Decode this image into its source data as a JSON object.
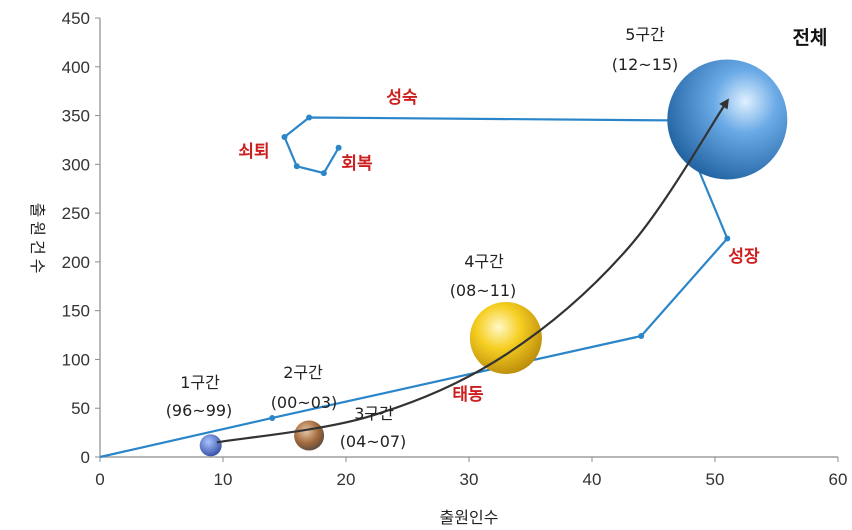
{
  "chart_data": {
    "type": "bubble-line",
    "title": "",
    "xlabel": "출원인수",
    "ylabel": "출원건수",
    "xlim": [
      0,
      60
    ],
    "ylim": [
      0,
      450
    ],
    "xticks": [
      "0",
      "10",
      "20",
      "30",
      "40",
      "50",
      "60"
    ],
    "yticks": [
      "0",
      "50",
      "100",
      "150",
      "200",
      "250",
      "300",
      "350",
      "400",
      "450"
    ],
    "grid": false,
    "lifecycle_path": {
      "color": "#2b86c9",
      "points": [
        {
          "x": 0,
          "y": 0
        },
        {
          "x": 14,
          "y": 40
        },
        {
          "x": 44,
          "y": 124
        },
        {
          "x": 51,
          "y": 224
        },
        {
          "x": 47,
          "y": 345
        },
        {
          "x": 17,
          "y": 348
        },
        {
          "x": 15,
          "y": 328
        },
        {
          "x": 16,
          "y": 298
        },
        {
          "x": 18.2,
          "y": 291
        },
        {
          "x": 19.4,
          "y": 317
        }
      ]
    },
    "phase_labels": [
      "태동",
      "성장",
      "성숙",
      "쇠퇴",
      "회복"
    ],
    "periods": [
      {
        "label": "1구간",
        "range": "(96~99)",
        "x": 9,
        "y": 12,
        "color": "#3a5fc4"
      },
      {
        "label": "2구간",
        "range": "(00~03)",
        "x": 17,
        "y": 22,
        "color": "#b07a4a"
      },
      {
        "label": "3구간",
        "range": "(04~07)",
        "x": 17,
        "y": 22,
        "color": "#8a8a8a"
      },
      {
        "label": "4구간",
        "range": "(08~11)",
        "x": 33,
        "y": 122,
        "color": "#e9b30f"
      },
      {
        "label": "5구간",
        "range": "(12~15)",
        "x": 51,
        "y": 346,
        "color": "#4f92d6"
      }
    ],
    "trend_arrow": {
      "points": [
        {
          "x": 9.5,
          "y": 15
        },
        {
          "x": 22,
          "y": 42
        },
        {
          "x": 33,
          "y": 105
        },
        {
          "x": 43,
          "y": 215
        },
        {
          "x": 51,
          "y": 365
        }
      ]
    },
    "total_label": "전체"
  }
}
